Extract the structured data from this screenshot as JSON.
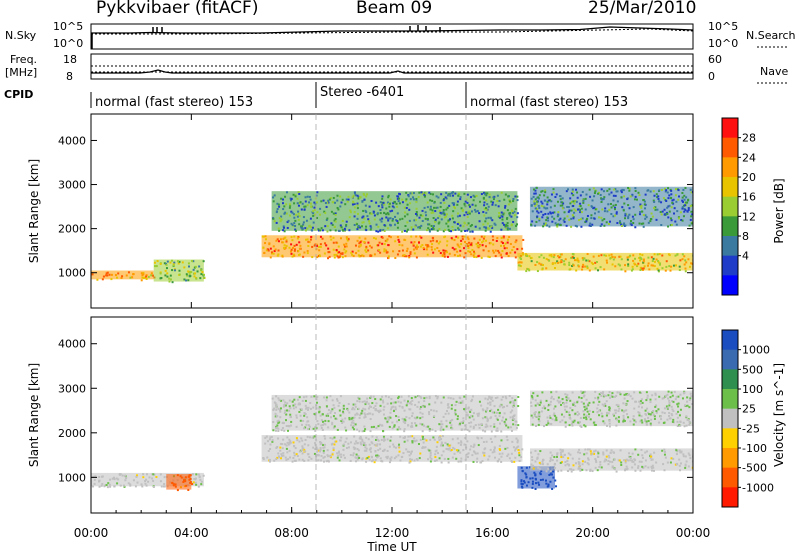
{
  "header": {
    "station": "Pykkvibaer (fitACF)",
    "beam": "Beam 09",
    "date": "25/Mar/2010"
  },
  "sky_panel": {
    "left_label": "N.Sky",
    "right_label": "N.Search",
    "left_ticks": [
      "10^5",
      "10^0"
    ],
    "right_ticks": [
      "10^5",
      "10^0"
    ]
  },
  "freq_panel": {
    "left_label_line1": "Freq.",
    "left_label_line2": "[MHz]",
    "right_label": "Nave",
    "left_ticks": [
      "18",
      "8"
    ],
    "right_ticks": [
      "60",
      "0"
    ]
  },
  "cpid": {
    "label": "CPID",
    "segments": [
      {
        "name": "normal (fast stereo) 153",
        "start_hour": 0,
        "end_hour": 9
      },
      {
        "name": "Stereo -6401",
        "start_hour": 9,
        "end_hour": 15
      },
      {
        "name": "normal (fast stereo) 153",
        "start_hour": 15,
        "end_hour": 24
      }
    ]
  },
  "power_colorbar": {
    "label": "Power [dB]",
    "ticks": [
      "28",
      "24",
      "20",
      "16",
      "12",
      "8",
      "4"
    ],
    "colors": [
      "#ff1010",
      "#ff5a00",
      "#ff9a00",
      "#e8c400",
      "#9acd32",
      "#3a9a3a",
      "#3a7aa0",
      "#1e3cc8",
      "#0000ff"
    ]
  },
  "velocity_colorbar": {
    "label": "Velocity [m s^-1]",
    "ticks": [
      "1000",
      "500",
      "100",
      "25",
      "-25",
      "-100",
      "-500",
      "-1000"
    ],
    "colors": [
      "#1a4dbf",
      "#3a6ab0",
      "#2f8f4f",
      "#6cc04a",
      "#c0c0c0",
      "#ffd000",
      "#ff9a00",
      "#ff5a00",
      "#ff1a00"
    ]
  },
  "chart_data": {
    "type": "heatmap",
    "x_ticks": [
      "00:00",
      "04:00",
      "08:00",
      "12:00",
      "16:00",
      "20:00",
      "00:00"
    ],
    "xlabel": "Time UT",
    "ylabel": "Slant Range [km]",
    "y_ticks": [
      1000,
      2000,
      3000,
      4000
    ],
    "xlim_hours": [
      0,
      24
    ],
    "ylim_km": [
      200,
      4600
    ],
    "power_echo_bands": [
      {
        "start_hour": 0.0,
        "end_hour": 2.5,
        "center_km": 950,
        "width_km": 200,
        "power_db": 24
      },
      {
        "start_hour": 2.5,
        "end_hour": 4.5,
        "center_km": 1050,
        "width_km": 500,
        "power_db": 14
      },
      {
        "start_hour": 6.8,
        "end_hour": 17.2,
        "center_km": 1600,
        "width_km": 500,
        "power_db": 25
      },
      {
        "start_hour": 7.2,
        "end_hour": 17.0,
        "center_km": 2400,
        "width_km": 900,
        "power_db": 10
      },
      {
        "start_hour": 17.0,
        "end_hour": 24.0,
        "center_km": 1250,
        "width_km": 400,
        "power_db": 20
      },
      {
        "start_hour": 17.5,
        "end_hour": 24.0,
        "center_km": 2500,
        "width_km": 900,
        "power_db": 9
      }
    ],
    "velocity_echo_bands": [
      {
        "start_hour": 0.0,
        "end_hour": 4.5,
        "center_km": 950,
        "width_km": 300,
        "velocity_ms": 0
      },
      {
        "start_hour": 3.0,
        "end_hour": 4.0,
        "center_km": 900,
        "width_km": 350,
        "velocity_ms": -400
      },
      {
        "start_hour": 6.8,
        "end_hour": 17.2,
        "center_km": 1650,
        "width_km": 600,
        "velocity_ms": 0
      },
      {
        "start_hour": 7.2,
        "end_hour": 17.0,
        "center_km": 2450,
        "width_km": 800,
        "velocity_ms": 10
      },
      {
        "start_hour": 17.0,
        "end_hour": 18.5,
        "center_km": 1000,
        "width_km": 500,
        "velocity_ms": 800
      },
      {
        "start_hour": 17.5,
        "end_hour": 24.0,
        "center_km": 1400,
        "width_km": 500,
        "velocity_ms": 0
      },
      {
        "start_hour": 17.5,
        "end_hour": 24.0,
        "center_km": 2550,
        "width_km": 800,
        "velocity_ms": 20
      }
    ]
  }
}
